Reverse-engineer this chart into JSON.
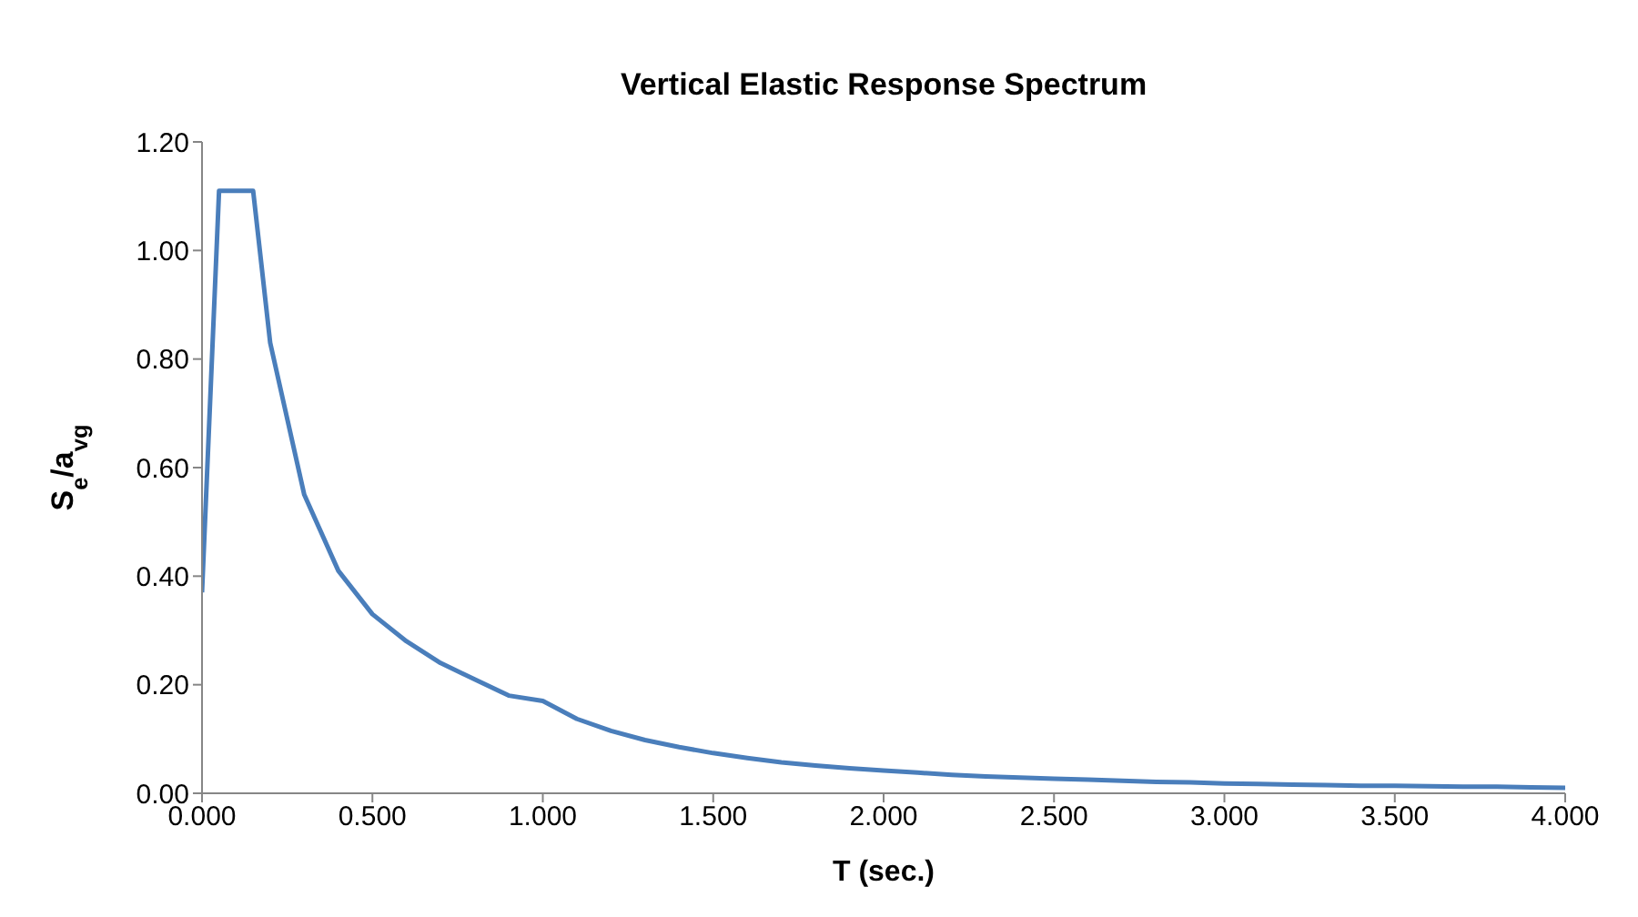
{
  "chart_data": {
    "type": "line",
    "title": "Vertical Elastic Response Spectrum",
    "xlabel": "T (sec.)",
    "ylabel": "S$_{e}$/a$_{vg}$",
    "x": [
      0,
      0.05,
      0.15,
      0.2,
      0.3,
      0.4,
      0.5,
      0.6,
      0.7,
      0.8,
      0.9,
      1.0,
      1.1,
      1.2,
      1.3,
      1.4,
      1.5,
      1.6,
      1.7,
      1.8,
      1.9,
      2.0,
      2.1,
      2.2,
      2.3,
      2.4,
      2.5,
      2.6,
      2.7,
      2.8,
      2.9,
      3.0,
      3.1,
      3.2,
      3.3,
      3.4,
      3.5,
      3.6,
      3.7,
      3.8,
      3.9,
      4.0
    ],
    "series": [
      {
        "color": "#4a7ebb",
        "values": [
          0.37,
          1.11,
          1.11,
          0.83,
          0.55,
          0.41,
          0.33,
          0.28,
          0.24,
          0.21,
          0.18,
          0.17,
          0.137,
          0.115,
          0.098,
          0.085,
          0.074,
          0.065,
          0.057,
          0.051,
          0.046,
          0.042,
          0.038,
          0.034,
          0.031,
          0.029,
          0.027,
          0.025,
          0.023,
          0.021,
          0.02,
          0.018,
          0.017,
          0.016,
          0.015,
          0.014,
          0.014,
          0.013,
          0.012,
          0.012,
          0.011,
          0.01
        ]
      }
    ],
    "xlim": [
      0,
      4
    ],
    "xticks": [
      {
        "value": 0,
        "label": "0.000"
      },
      {
        "value": 0.5,
        "label": "0.500"
      },
      {
        "value": 1,
        "label": "1.000"
      },
      {
        "value": 1.5,
        "label": "1.500"
      },
      {
        "value": 2,
        "label": "2.000"
      },
      {
        "value": 2.5,
        "label": "2.500"
      },
      {
        "value": 3,
        "label": "3.000"
      },
      {
        "value": 3.5,
        "label": "3.500"
      },
      {
        "value": 4,
        "label": "4.000"
      }
    ],
    "ylim": [
      0,
      1.2
    ],
    "yticks": [
      {
        "value": 0,
        "label": "0.00"
      },
      {
        "value": 0.2,
        "label": "0.20"
      },
      {
        "value": 0.4,
        "label": "0.40"
      },
      {
        "value": 0.6,
        "label": "0.60"
      },
      {
        "value": 0.8,
        "label": "0.80"
      },
      {
        "value": 1,
        "label": "1.00"
      },
      {
        "value": 1.2,
        "label": "1.20"
      }
    ],
    "grid": false,
    "legend": false,
    "marker": "none",
    "line_style": "solid"
  }
}
